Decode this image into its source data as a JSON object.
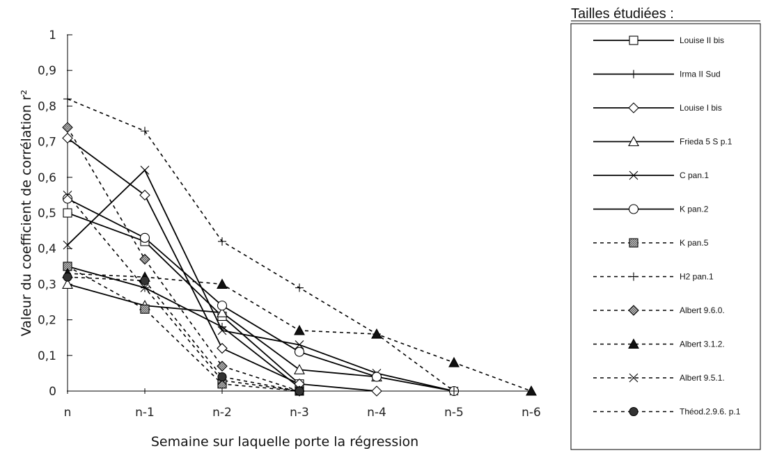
{
  "chart_data": {
    "type": "line",
    "title": "",
    "xlabel": "Semaine sur laquelle porte la régression",
    "ylabel": "Valeur du coefficient de corrélation r²",
    "categories": [
      "n",
      "n-1",
      "n-2",
      "n-3",
      "n-4",
      "n-5",
      "n-6"
    ],
    "ylim": [
      0,
      1
    ],
    "yticks": [
      "0",
      "0,1",
      "0,2",
      "0,3",
      "0,4",
      "0,5",
      "0,6",
      "0,7",
      "0,8",
      "0,9",
      "1"
    ],
    "legend_title": "Tailles étudiées :",
    "legend_position": "right",
    "grid": false,
    "series": [
      {
        "name": "Louise II bis",
        "marker": "square-open",
        "dash": "solid",
        "values": [
          0.5,
          0.42,
          0.21,
          0.02,
          null,
          null,
          null
        ]
      },
      {
        "name": "Irma II Sud",
        "marker": "plus",
        "dash": "solid",
        "values": [
          0.35,
          0.29,
          0.18,
          0.01,
          null,
          null,
          null
        ]
      },
      {
        "name": "Louise I bis",
        "marker": "diamond-open",
        "dash": "solid",
        "values": [
          0.71,
          0.55,
          0.12,
          0.02,
          0.0,
          null,
          null
        ]
      },
      {
        "name": "Frieda 5 S p.1",
        "marker": "triangle-open",
        "dash": "solid",
        "values": [
          0.3,
          0.24,
          0.22,
          0.06,
          0.04,
          null,
          null
        ]
      },
      {
        "name": "C pan.1",
        "marker": "x",
        "dash": "solid",
        "values": [
          0.41,
          0.62,
          0.17,
          0.13,
          0.05,
          0.0,
          null
        ]
      },
      {
        "name": "K pan.2",
        "marker": "circle-open",
        "dash": "solid",
        "values": [
          0.54,
          0.43,
          0.24,
          0.11,
          0.04,
          0.0,
          null
        ]
      },
      {
        "name": "K pan.5",
        "marker": "square-hatched",
        "dash": "dashed",
        "values": [
          0.35,
          0.23,
          0.02,
          0.0,
          null,
          null,
          null
        ]
      },
      {
        "name": "H2 pan.1",
        "marker": "plus",
        "dash": "dashed",
        "values": [
          0.82,
          0.73,
          0.42,
          0.29,
          0.16,
          0.0,
          null
        ]
      },
      {
        "name": "Albert 9.6.0.",
        "marker": "diamond-hatched",
        "dash": "dashed",
        "values": [
          0.74,
          0.37,
          0.07,
          0.0,
          null,
          null,
          null
        ]
      },
      {
        "name": "Albert 3.1.2.",
        "marker": "triangle-filled",
        "dash": "dashed",
        "values": [
          0.33,
          0.32,
          0.3,
          0.17,
          0.16,
          0.08,
          0.0
        ]
      },
      {
        "name": "Albert 9.5.1.",
        "marker": "x",
        "dash": "dashed",
        "values": [
          0.55,
          0.29,
          0.03,
          0.0,
          null,
          null,
          null
        ]
      },
      {
        "name": "Théod.2.9.6. p.1",
        "marker": "circle-filled",
        "dash": "dashed",
        "values": [
          0.32,
          0.31,
          0.04,
          0.0,
          null,
          null,
          null
        ]
      }
    ]
  }
}
